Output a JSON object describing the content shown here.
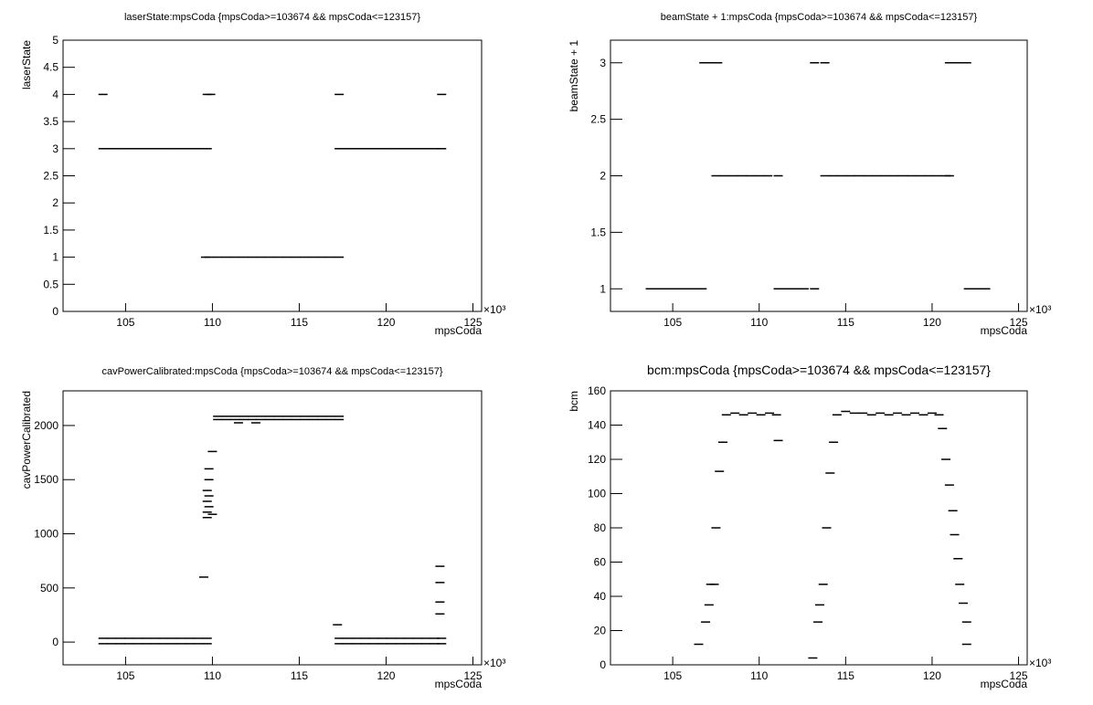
{
  "chart_data": [
    {
      "type": "scatter",
      "title": "laserState:mpsCoda {mpsCoda>=103674 && mpsCoda<=123157}",
      "x_label": "mpsCoda",
      "y_label": "laserState",
      "x_multiplier": "×10³",
      "color": "#000000",
      "xlim": [
        101.4,
        125.5
      ],
      "xticks": [
        105,
        110,
        115,
        120,
        125
      ],
      "ylim": [
        0,
        5
      ],
      "yticks": [
        0,
        0.5,
        1,
        1.5,
        2,
        2.5,
        3,
        3.5,
        4,
        4.5,
        5
      ],
      "x": [
        103.7,
        104.2,
        104.7,
        105.2,
        105.7,
        106.2,
        106.7,
        107.2,
        107.7,
        108.2,
        108.7,
        109.2,
        109.7,
        103.7,
        109.7,
        109.9,
        117.3,
        123.2,
        109.6,
        109.8,
        110.3,
        110.8,
        111.3,
        111.8,
        112.3,
        112.8,
        113.3,
        113.8,
        114.3,
        114.8,
        115.3,
        115.8,
        116.3,
        116.8,
        117.3,
        117.3,
        117.8,
        118.3,
        118.8,
        119.3,
        119.8,
        120.3,
        120.8,
        121.3,
        121.8,
        122.3,
        122.8,
        123.2
      ],
      "values": [
        3,
        3,
        3,
        3,
        3,
        3,
        3,
        3,
        3,
        3,
        3,
        3,
        3,
        4,
        4,
        4,
        4,
        4,
        1,
        1,
        1,
        1,
        1,
        1,
        1,
        1,
        1,
        1,
        1,
        1,
        1,
        1,
        1,
        1,
        1,
        3,
        3,
        3,
        3,
        3,
        3,
        3,
        3,
        3,
        3,
        3,
        3,
        3
      ]
    },
    {
      "type": "scatter",
      "title": "beamState + 1:mpsCoda {mpsCoda>=103674 && mpsCoda<=123157}",
      "x_label": "mpsCoda",
      "y_label": "beamState + 1",
      "x_multiplier": "×10³",
      "color": "#000000",
      "xlim": [
        101.4,
        125.5
      ],
      "xticks": [
        105,
        110,
        115,
        120,
        125
      ],
      "ylim": [
        0.8,
        3.2
      ],
      "yticks": [
        1,
        1.5,
        2,
        2.5,
        3
      ],
      "x": [
        103.7,
        104.2,
        104.7,
        105.2,
        105.7,
        106.2,
        106.7,
        106.8,
        107.3,
        107.6,
        107.5,
        108,
        108.5,
        109,
        109.5,
        110,
        110.5,
        111.1,
        111.1,
        111.6,
        112.1,
        112.6,
        113.2,
        113.2,
        113.8,
        113.8,
        114.3,
        114.8,
        115.3,
        115.8,
        116.3,
        116.8,
        117.3,
        117.8,
        118.3,
        118.8,
        119.3,
        119.8,
        120.3,
        120.8,
        121,
        121,
        121.5,
        122,
        122.1,
        122.6,
        123.1
      ],
      "values": [
        1,
        1,
        1,
        1,
        1,
        1,
        1,
        3,
        3,
        3,
        2,
        2,
        2,
        2,
        2,
        2,
        2,
        2,
        1,
        1,
        1,
        1,
        1,
        3,
        3,
        2,
        2,
        2,
        2,
        2,
        2,
        2,
        2,
        2,
        2,
        2,
        2,
        2,
        2,
        2,
        2,
        3,
        3,
        3,
        1,
        1,
        1
      ]
    },
    {
      "type": "scatter",
      "title": "cavPowerCalibrated:mpsCoda {mpsCoda>=103674 && mpsCoda<=123157}",
      "x_label": "mpsCoda",
      "y_label": "cavPowerCalibrated",
      "x_multiplier": "×10³",
      "color": "#000000",
      "xlim": [
        101.4,
        125.5
      ],
      "xticks": [
        105,
        110,
        115,
        120,
        125
      ],
      "ylim": [
        -210,
        2320
      ],
      "yticks": [
        0,
        500,
        1000,
        1500,
        2000
      ],
      "x": [
        103.7,
        104.2,
        104.7,
        105.2,
        105.7,
        106.2,
        106.7,
        107.2,
        107.7,
        108.2,
        108.7,
        109.2,
        109.7,
        103.7,
        104.2,
        104.7,
        105.2,
        105.7,
        106.2,
        106.7,
        107.2,
        107.7,
        108.2,
        108.7,
        109.2,
        109.7,
        110.3,
        110.8,
        111.3,
        111.8,
        112.3,
        112.8,
        113.3,
        113.8,
        114.3,
        114.8,
        115.3,
        115.8,
        116.3,
        116.8,
        117.3,
        110.3,
        110.8,
        111.3,
        111.8,
        112.3,
        112.8,
        113.3,
        113.8,
        114.3,
        114.8,
        115.3,
        115.8,
        116.3,
        116.8,
        117.3,
        117.3,
        117.8,
        118.3,
        118.8,
        119.3,
        119.8,
        120.3,
        120.8,
        121.3,
        121.8,
        122.3,
        122.8,
        123.2,
        117.3,
        117.8,
        118.3,
        118.8,
        119.3,
        119.8,
        120.3,
        120.8,
        121.3,
        121.8,
        122.3,
        122.8,
        123.2,
        109.5,
        109.7,
        109.7,
        109.8,
        109.7,
        109.8,
        109.7,
        109.8,
        109.8,
        110,
        110,
        117.2,
        123.1,
        123.1,
        123.1,
        123.1,
        111.5,
        112.5
      ],
      "values": [
        35,
        35,
        35,
        35,
        35,
        35,
        35,
        35,
        35,
        35,
        35,
        35,
        35,
        -15,
        -15,
        -15,
        -15,
        -15,
        -15,
        -15,
        -15,
        -15,
        -15,
        -15,
        -15,
        -15,
        2085,
        2085,
        2085,
        2085,
        2085,
        2085,
        2085,
        2085,
        2085,
        2085,
        2085,
        2085,
        2085,
        2085,
        2085,
        2055,
        2055,
        2055,
        2055,
        2055,
        2055,
        2055,
        2055,
        2055,
        2055,
        2055,
        2055,
        2055,
        2055,
        2055,
        35,
        35,
        35,
        35,
        35,
        35,
        35,
        35,
        35,
        35,
        35,
        35,
        35,
        -15,
        -15,
        -15,
        -15,
        -15,
        -15,
        -15,
        -15,
        -15,
        -15,
        -15,
        -15,
        -15,
        600,
        1150,
        1200,
        1250,
        1300,
        1350,
        1400,
        1500,
        1600,
        1180,
        1760,
        160,
        700,
        550,
        370,
        260,
        2025,
        2025
      ]
    },
    {
      "type": "scatter",
      "title": "bcm:mpsCoda {mpsCoda>=103674 && mpsCoda<=123157}",
      "x_label": "mpsCoda",
      "y_label": "bcm",
      "x_multiplier": "×10³",
      "color": "#000000",
      "xlim": [
        101.4,
        125.5
      ],
      "xticks": [
        105,
        110,
        115,
        120,
        125
      ],
      "ylim": [
        0,
        160
      ],
      "yticks": [
        0,
        20,
        40,
        60,
        80,
        100,
        120,
        140,
        160
      ],
      "x": [
        106.5,
        106.9,
        107.1,
        107.2,
        107.4,
        107.5,
        107.7,
        107.9,
        108.1,
        108.6,
        109.1,
        109.6,
        110.1,
        110.6,
        111,
        111.1,
        113.1,
        113.4,
        113.5,
        113.7,
        113.9,
        114.1,
        114.3,
        114.5,
        115,
        115.5,
        116,
        116.5,
        117,
        117.5,
        118,
        118.5,
        119,
        119.5,
        120,
        120.4,
        120.6,
        120.8,
        121,
        121.2,
        121.3,
        121.5,
        121.6,
        121.8,
        122,
        122
      ],
      "values": [
        12,
        25,
        35,
        47,
        47,
        80,
        113,
        130,
        146,
        147,
        146,
        147,
        146,
        147,
        146,
        131,
        4,
        25,
        35,
        47,
        80,
        112,
        130,
        146,
        148,
        147,
        147,
        146,
        147,
        146,
        147,
        146,
        147,
        146,
        147,
        146,
        138,
        120,
        105,
        90,
        76,
        62,
        47,
        36,
        25,
        12
      ]
    }
  ]
}
